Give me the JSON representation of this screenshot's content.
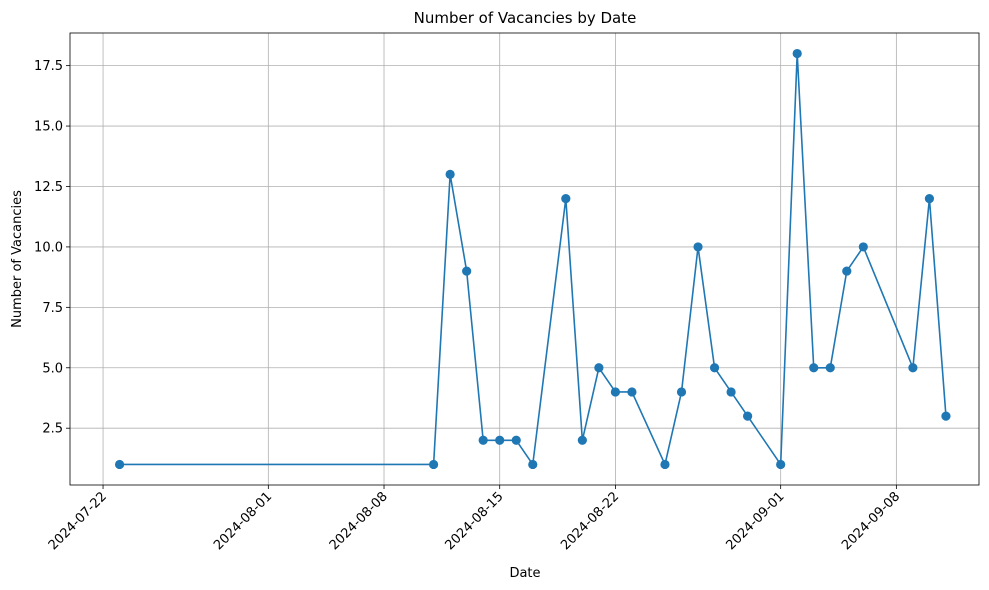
{
  "chart_data": {
    "type": "line",
    "title": "Number of Vacancies by Date",
    "xlabel": "Date",
    "ylabel": "Number of Vacancies",
    "x_ticks": [
      "2024-07-22",
      "2024-08-01",
      "2024-08-08",
      "2024-08-15",
      "2024-08-22",
      "2024-09-01",
      "2024-09-08"
    ],
    "y_ticks": [
      "2.5",
      "5.0",
      "7.5",
      "10.0",
      "12.5",
      "15.0",
      "17.5"
    ],
    "xlim": [
      "2024-07-20",
      "2024-09-13"
    ],
    "ylim": [
      0.15,
      18.85
    ],
    "grid": true,
    "marker": "circle",
    "series_color": "#1f77b4",
    "series": [
      {
        "x": [
          "2024-07-23",
          "2024-08-11",
          "2024-08-12",
          "2024-08-13",
          "2024-08-14",
          "2024-08-15",
          "2024-08-16",
          "2024-08-17",
          "2024-08-19",
          "2024-08-20",
          "2024-08-21",
          "2024-08-22",
          "2024-08-23",
          "2024-08-25",
          "2024-08-26",
          "2024-08-27",
          "2024-08-28",
          "2024-08-29",
          "2024-08-30",
          "2024-09-01",
          "2024-09-02",
          "2024-09-03",
          "2024-09-04",
          "2024-09-05",
          "2024-09-06",
          "2024-09-09",
          "2024-09-10",
          "2024-09-11"
        ],
        "y": [
          1,
          1,
          13,
          9,
          2,
          2,
          2,
          1,
          12,
          2,
          5,
          4,
          4,
          1,
          4,
          10,
          5,
          4,
          3,
          1,
          18,
          5,
          5,
          9,
          10,
          5,
          12,
          3
        ]
      }
    ]
  }
}
